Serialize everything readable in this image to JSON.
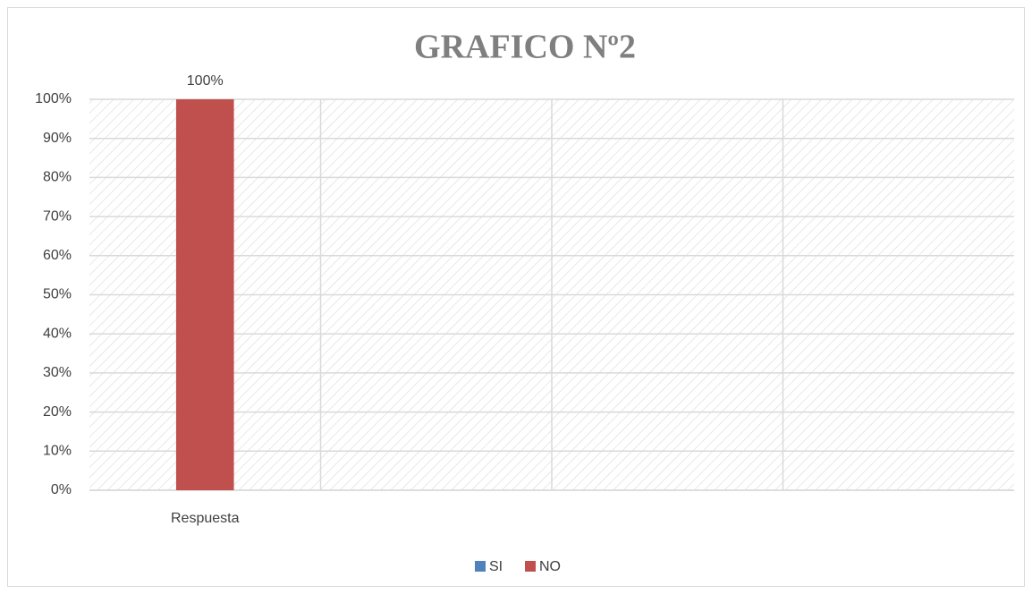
{
  "chart_data": {
    "type": "bar",
    "title": "GRAFICO Nº2",
    "categories": [
      "Respuesta",
      null,
      null,
      null
    ],
    "series": [
      {
        "name": "SI",
        "color": "#4f81bd",
        "values": [
          null,
          null,
          null,
          null
        ]
      },
      {
        "name": "NO",
        "color": "#c0504d",
        "values": [
          100,
          null,
          null,
          null
        ],
        "value_labels": [
          "100%",
          null,
          null,
          null
        ]
      }
    ],
    "ylim": [
      0,
      100
    ],
    "yticks": [
      {
        "value": 0,
        "label": "0%"
      },
      {
        "value": 10,
        "label": "10%"
      },
      {
        "value": 20,
        "label": "20%"
      },
      {
        "value": 30,
        "label": "30%"
      },
      {
        "value": 40,
        "label": "40%"
      },
      {
        "value": 50,
        "label": "50%"
      },
      {
        "value": 60,
        "label": "60%"
      },
      {
        "value": 70,
        "label": "70%"
      },
      {
        "value": 80,
        "label": "80%"
      },
      {
        "value": 90,
        "label": "90%"
      },
      {
        "value": 100,
        "label": "100%"
      }
    ],
    "grid": true,
    "legend": "bottom"
  }
}
